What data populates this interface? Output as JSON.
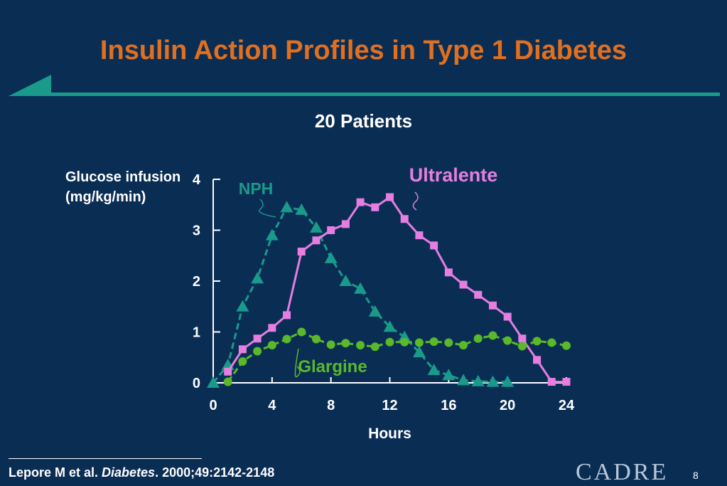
{
  "slide": {
    "title": "Insulin Action Profiles in Type 1 Diabetes",
    "subtitle": "20 Patients",
    "citation_authors": "Lepore M et al. ",
    "citation_journal": "Diabetes",
    "citation_rest": ". 2000;49:2142-2148",
    "logo_text": "CADRE",
    "page_number": "8"
  },
  "colors": {
    "background": "#0a2d54",
    "title": "#e07020",
    "accent": "#1a9a8a",
    "nph": "#1a9a8a",
    "ultralente": "#e57ee0",
    "glargine": "#5ab82a"
  },
  "chart_data": {
    "type": "line",
    "title": "",
    "xlabel": "Hours",
    "ylabel": "Glucose infusion\n(mg/kg/min)",
    "xlim": [
      0,
      24
    ],
    "ylim": [
      0,
      4
    ],
    "xticks": [
      0,
      4,
      8,
      12,
      16,
      20,
      24
    ],
    "yticks": [
      0,
      1,
      2,
      3,
      4
    ],
    "grid": false,
    "series": [
      {
        "name": "NPH",
        "marker": "triangle",
        "x": [
          0,
          1,
          2,
          3,
          4,
          5,
          6,
          7,
          8,
          9,
          10,
          11,
          12,
          13,
          14,
          15,
          16,
          17,
          18,
          19,
          20
        ],
        "y": [
          0.0,
          0.35,
          1.5,
          2.05,
          2.9,
          3.45,
          3.4,
          3.05,
          2.45,
          2.0,
          1.85,
          1.4,
          1.1,
          0.9,
          0.6,
          0.25,
          0.15,
          0.05,
          0.03,
          0.02,
          0.02
        ]
      },
      {
        "name": "Ultralente",
        "marker": "square",
        "x": [
          1,
          2,
          3,
          4,
          5,
          6,
          7,
          8,
          9,
          10,
          11,
          12,
          13,
          14,
          15,
          16,
          17,
          18,
          19,
          20,
          21,
          22,
          23,
          24
        ],
        "y": [
          0.22,
          0.66,
          0.87,
          1.08,
          1.33,
          2.58,
          2.8,
          3.0,
          3.12,
          3.55,
          3.45,
          3.65,
          3.22,
          2.9,
          2.7,
          2.17,
          1.93,
          1.73,
          1.52,
          1.3,
          0.87,
          0.45,
          0.02,
          0.02
        ]
      },
      {
        "name": "Glargine",
        "marker": "circle",
        "x": [
          1,
          2,
          3,
          4,
          5,
          6,
          7,
          8,
          9,
          10,
          11,
          12,
          13,
          14,
          15,
          16,
          17,
          18,
          19,
          20,
          21,
          22,
          23,
          24
        ],
        "y": [
          0.02,
          0.42,
          0.62,
          0.74,
          0.86,
          1.0,
          0.86,
          0.75,
          0.78,
          0.74,
          0.71,
          0.8,
          0.8,
          0.79,
          0.81,
          0.79,
          0.74,
          0.87,
          0.93,
          0.83,
          0.72,
          0.82,
          0.79,
          0.73
        ]
      }
    ]
  }
}
